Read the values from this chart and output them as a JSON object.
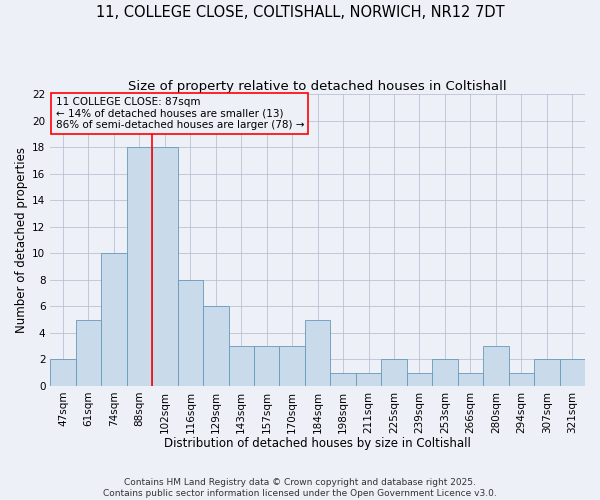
{
  "title": "11, COLLEGE CLOSE, COLTISHALL, NORWICH, NR12 7DT",
  "subtitle": "Size of property relative to detached houses in Coltishall",
  "xlabel": "Distribution of detached houses by size in Coltishall",
  "ylabel": "Number of detached properties",
  "categories": [
    "47sqm",
    "61sqm",
    "74sqm",
    "88sqm",
    "102sqm",
    "116sqm",
    "129sqm",
    "143sqm",
    "157sqm",
    "170sqm",
    "184sqm",
    "198sqm",
    "211sqm",
    "225sqm",
    "239sqm",
    "253sqm",
    "266sqm",
    "280sqm",
    "294sqm",
    "307sqm",
    "321sqm"
  ],
  "values": [
    2,
    5,
    10,
    18,
    18,
    8,
    6,
    3,
    3,
    3,
    5,
    1,
    1,
    2,
    1,
    2,
    1,
    3,
    1,
    2,
    2
  ],
  "bar_color": "#c9daea",
  "bar_edge_color": "#6699bb",
  "grid_color": "#b0b8cc",
  "background_color": "#eef0f8",
  "vline_x": 3.5,
  "property_label": "11 COLLEGE CLOSE: 87sqm",
  "pct_smaller": "14% of detached houses are smaller (13)",
  "pct_larger": "86% of semi-detached houses are larger (78)",
  "ylim": [
    0,
    22
  ],
  "yticks": [
    0,
    2,
    4,
    6,
    8,
    10,
    12,
    14,
    16,
    18,
    20,
    22
  ],
  "footer": "Contains HM Land Registry data © Crown copyright and database right 2025.\nContains public sector information licensed under the Open Government Licence v3.0.",
  "title_fontsize": 10.5,
  "subtitle_fontsize": 9.5,
  "axis_label_fontsize": 8.5,
  "tick_fontsize": 7.5,
  "annotation_fontsize": 7.5,
  "footer_fontsize": 6.5
}
